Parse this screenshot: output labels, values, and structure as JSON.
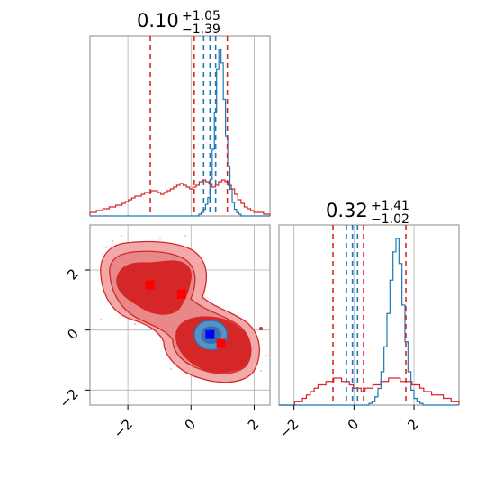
{
  "chart_data": {
    "type": "corner",
    "colors": {
      "main": "#d62728",
      "alt": "#1f77b4",
      "truth_blue": "#0000ff",
      "truth_red": "#ff0000",
      "grid": "#b0b0b0"
    },
    "parameters": [
      {
        "title": {
          "median": "0.10",
          "plus": "+1.05",
          "minus": "−1.39"
        },
        "range": [
          -3.2,
          2.5
        ],
        "quantiles_main": [
          -1.29,
          0.1,
          1.15
        ],
        "quantiles_alt": [
          0.4,
          0.6,
          0.78
        ],
        "ticks": [
          -2,
          0,
          2
        ],
        "tick_labels": [
          "−2",
          "0",
          "2"
        ]
      },
      {
        "title": {
          "median": "0.32",
          "plus": "+1.41",
          "minus": "−1.02"
        },
        "range": [
          -2.5,
          3.5
        ],
        "quantiles_main": [
          -0.7,
          0.32,
          1.73
        ],
        "quantiles_alt": [
          -0.25,
          -0.05,
          0.12
        ],
        "ticks": [
          -2,
          0,
          2
        ],
        "tick_labels": [
          "−2",
          "0",
          "2"
        ]
      }
    ],
    "hist_main_p1": [
      2,
      2,
      3,
      3,
      4,
      4,
      5,
      5,
      6,
      6,
      7,
      8,
      9,
      10,
      11,
      11,
      12,
      13,
      13,
      14,
      14,
      13,
      12,
      13,
      14,
      15,
      16,
      17,
      18,
      17,
      16,
      15,
      16,
      17,
      19,
      20,
      19,
      18,
      16,
      17,
      19,
      20,
      19,
      17,
      15,
      12,
      9,
      7,
      5,
      4,
      3,
      2,
      2,
      2,
      1,
      1
    ],
    "hist_alt_p1": [
      0,
      0,
      0,
      0,
      0,
      0,
      0,
      0,
      0,
      0,
      0,
      0,
      0,
      0,
      0,
      0,
      0,
      0,
      0,
      0,
      0,
      0,
      0,
      0,
      0,
      0,
      0,
      0,
      0,
      0,
      0,
      0,
      0,
      0,
      0,
      0,
      0,
      0,
      0,
      0,
      0,
      0,
      0,
      0,
      0,
      0,
      0,
      0,
      0,
      1,
      2,
      4,
      7,
      11,
      22,
      40,
      62,
      88,
      100,
      92,
      70,
      48,
      30,
      16,
      8,
      4,
      2,
      1,
      0,
      0,
      0,
      0,
      0,
      0,
      0,
      0,
      0,
      0,
      0,
      0,
      0
    ],
    "hist_main_p2": [
      0,
      0,
      0,
      0,
      1,
      1,
      2,
      3,
      4,
      5,
      6,
      6,
      7,
      7,
      8,
      8,
      7,
      7,
      6,
      5,
      5,
      4,
      5,
      5,
      6,
      6,
      7,
      7,
      8,
      8,
      8,
      7,
      7,
      7,
      6,
      6,
      5,
      4,
      4,
      3,
      3,
      3,
      2,
      2,
      1,
      1
    ],
    "hist_alt_p2": [
      0,
      0,
      0,
      0,
      0,
      0,
      0,
      0,
      0,
      0,
      0,
      0,
      0,
      0,
      0,
      0,
      0,
      0,
      0,
      0,
      0,
      0,
      0,
      0,
      0,
      0,
      0,
      0,
      0,
      0,
      1,
      2,
      5,
      10,
      20,
      35,
      55,
      75,
      92,
      100,
      85,
      60,
      38,
      20,
      9,
      4,
      2,
      1,
      0,
      0,
      0,
      0,
      0,
      0,
      0,
      0,
      0,
      0,
      0,
      0
    ],
    "truth_points_red": [
      [
        -1.3,
        1.5
      ],
      [
        -0.3,
        1.2
      ],
      [
        0.95,
        -0.45
      ]
    ],
    "truth_point_blue": [
      0.6,
      -0.15
    ]
  }
}
